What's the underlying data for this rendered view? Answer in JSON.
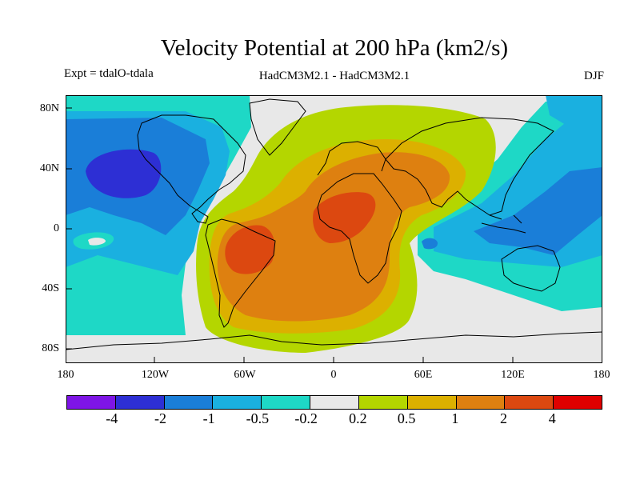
{
  "title": "Velocity Potential at 200 hPa (km2/s)",
  "subtitle_left": "Expt = tdalO-tdala",
  "subtitle_center": "HadCM3M2.1 - HadCM3M2.1",
  "subtitle_right": "DJF",
  "lat_labels": [
    "80N",
    "40N",
    "0",
    "40S",
    "80S"
  ],
  "lon_labels": [
    "180",
    "120W",
    "60W",
    "0",
    "60E",
    "120E",
    "180"
  ],
  "colorbar": {
    "colors": [
      "#7e15e6",
      "#2d2fd4",
      "#1a7ed8",
      "#1ab0e0",
      "#1ed8c6",
      "#e8e8e8",
      "#b4d600",
      "#dcb000",
      "#de8010",
      "#dc4810",
      "#e00000"
    ],
    "labels": [
      "-4",
      "-2",
      "-1",
      "-0.5",
      "-0.2",
      "0.2",
      "0.5",
      "1",
      "2",
      "4"
    ]
  },
  "chart_data": {
    "type": "heatmap",
    "title": "Velocity Potential at 200 hPa (km2/s)",
    "variable": "Velocity Potential at 200 hPa",
    "units": "km2/s",
    "season": "DJF",
    "levels": [
      -4,
      -2,
      -1,
      -0.5,
      -0.2,
      0.2,
      0.5,
      1,
      2,
      4
    ],
    "xlim": [
      -180,
      180
    ],
    "ylim": [
      -90,
      90
    ],
    "x_ticks": [
      "180",
      "120W",
      "60W",
      "0",
      "60E",
      "120E",
      "180"
    ],
    "y_ticks": [
      "80N",
      "40N",
      "0",
      "40S",
      "80S"
    ],
    "features": [
      {
        "name": "North Pacific minimum",
        "approx_lon": -138,
        "approx_lat": 35,
        "level_band": "-4 to -2"
      },
      {
        "name": "South Pacific weak maximum",
        "approx_lon": -160,
        "approx_lat": -8,
        "level_band": "0.2 to 0.5"
      },
      {
        "name": "South America maximum",
        "approx_lon": -55,
        "approx_lat": -18,
        "level_band": "2 to 4"
      },
      {
        "name": "Africa maximum",
        "approx_lon": 15,
        "approx_lat": 5,
        "level_band": "2 to 4"
      },
      {
        "name": "West Pacific minimum",
        "approx_lon": 130,
        "approx_lat": 0,
        "level_band": "-1 to -0.5"
      }
    ]
  }
}
